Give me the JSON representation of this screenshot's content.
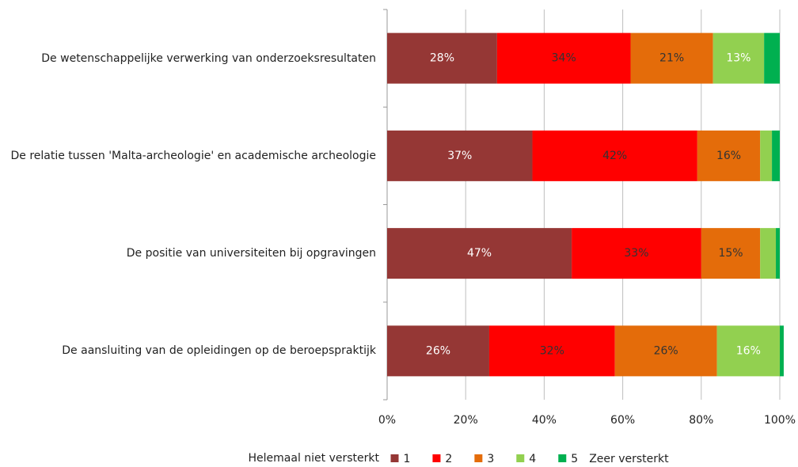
{
  "chart_data": {
    "type": "stacked_barh",
    "categories": [
      "De wetenschappelijke verwerking van onderzoeksresultaten",
      "De relatie tussen 'Malta-archeologie' en academische archeologie",
      "De positie van universiteiten bij opgravingen",
      "De aansluiting van de opleidingen op de beroepspraktijk"
    ],
    "series": [
      {
        "name": "1",
        "color": "#953735",
        "values": [
          28,
          37,
          47,
          26
        ],
        "value_labels": [
          "28%",
          "37%",
          "47%",
          "26%"
        ]
      },
      {
        "name": "2",
        "color": "#ff0000",
        "values": [
          34,
          42,
          33,
          32
        ],
        "value_labels": [
          "34%",
          "42%",
          "33%",
          "32%"
        ]
      },
      {
        "name": "3",
        "color": "#e46c0a",
        "values": [
          21,
          16,
          15,
          26
        ],
        "value_labels": [
          "21%",
          "16%",
          "15%",
          "26%"
        ]
      },
      {
        "name": "4",
        "color": "#92d050",
        "values": [
          13,
          3,
          4,
          16
        ],
        "value_labels": [
          "13%",
          null,
          null,
          "16%"
        ]
      },
      {
        "name": "5",
        "color": "#00b050",
        "values": [
          4,
          2,
          1,
          1
        ]
      }
    ],
    "xlim": [
      0,
      100
    ],
    "xticks": [
      {
        "value": 0,
        "label": "0%"
      },
      {
        "value": 20,
        "label": "20%"
      },
      {
        "value": 40,
        "label": "40%"
      },
      {
        "value": 60,
        "label": "60%"
      },
      {
        "value": 80,
        "label": "80%"
      },
      {
        "value": 100,
        "label": "100%"
      }
    ],
    "grid": true,
    "legend_left_label": "Helemaal niet versterkt",
    "legend_right_label": "Zeer versterkt"
  }
}
